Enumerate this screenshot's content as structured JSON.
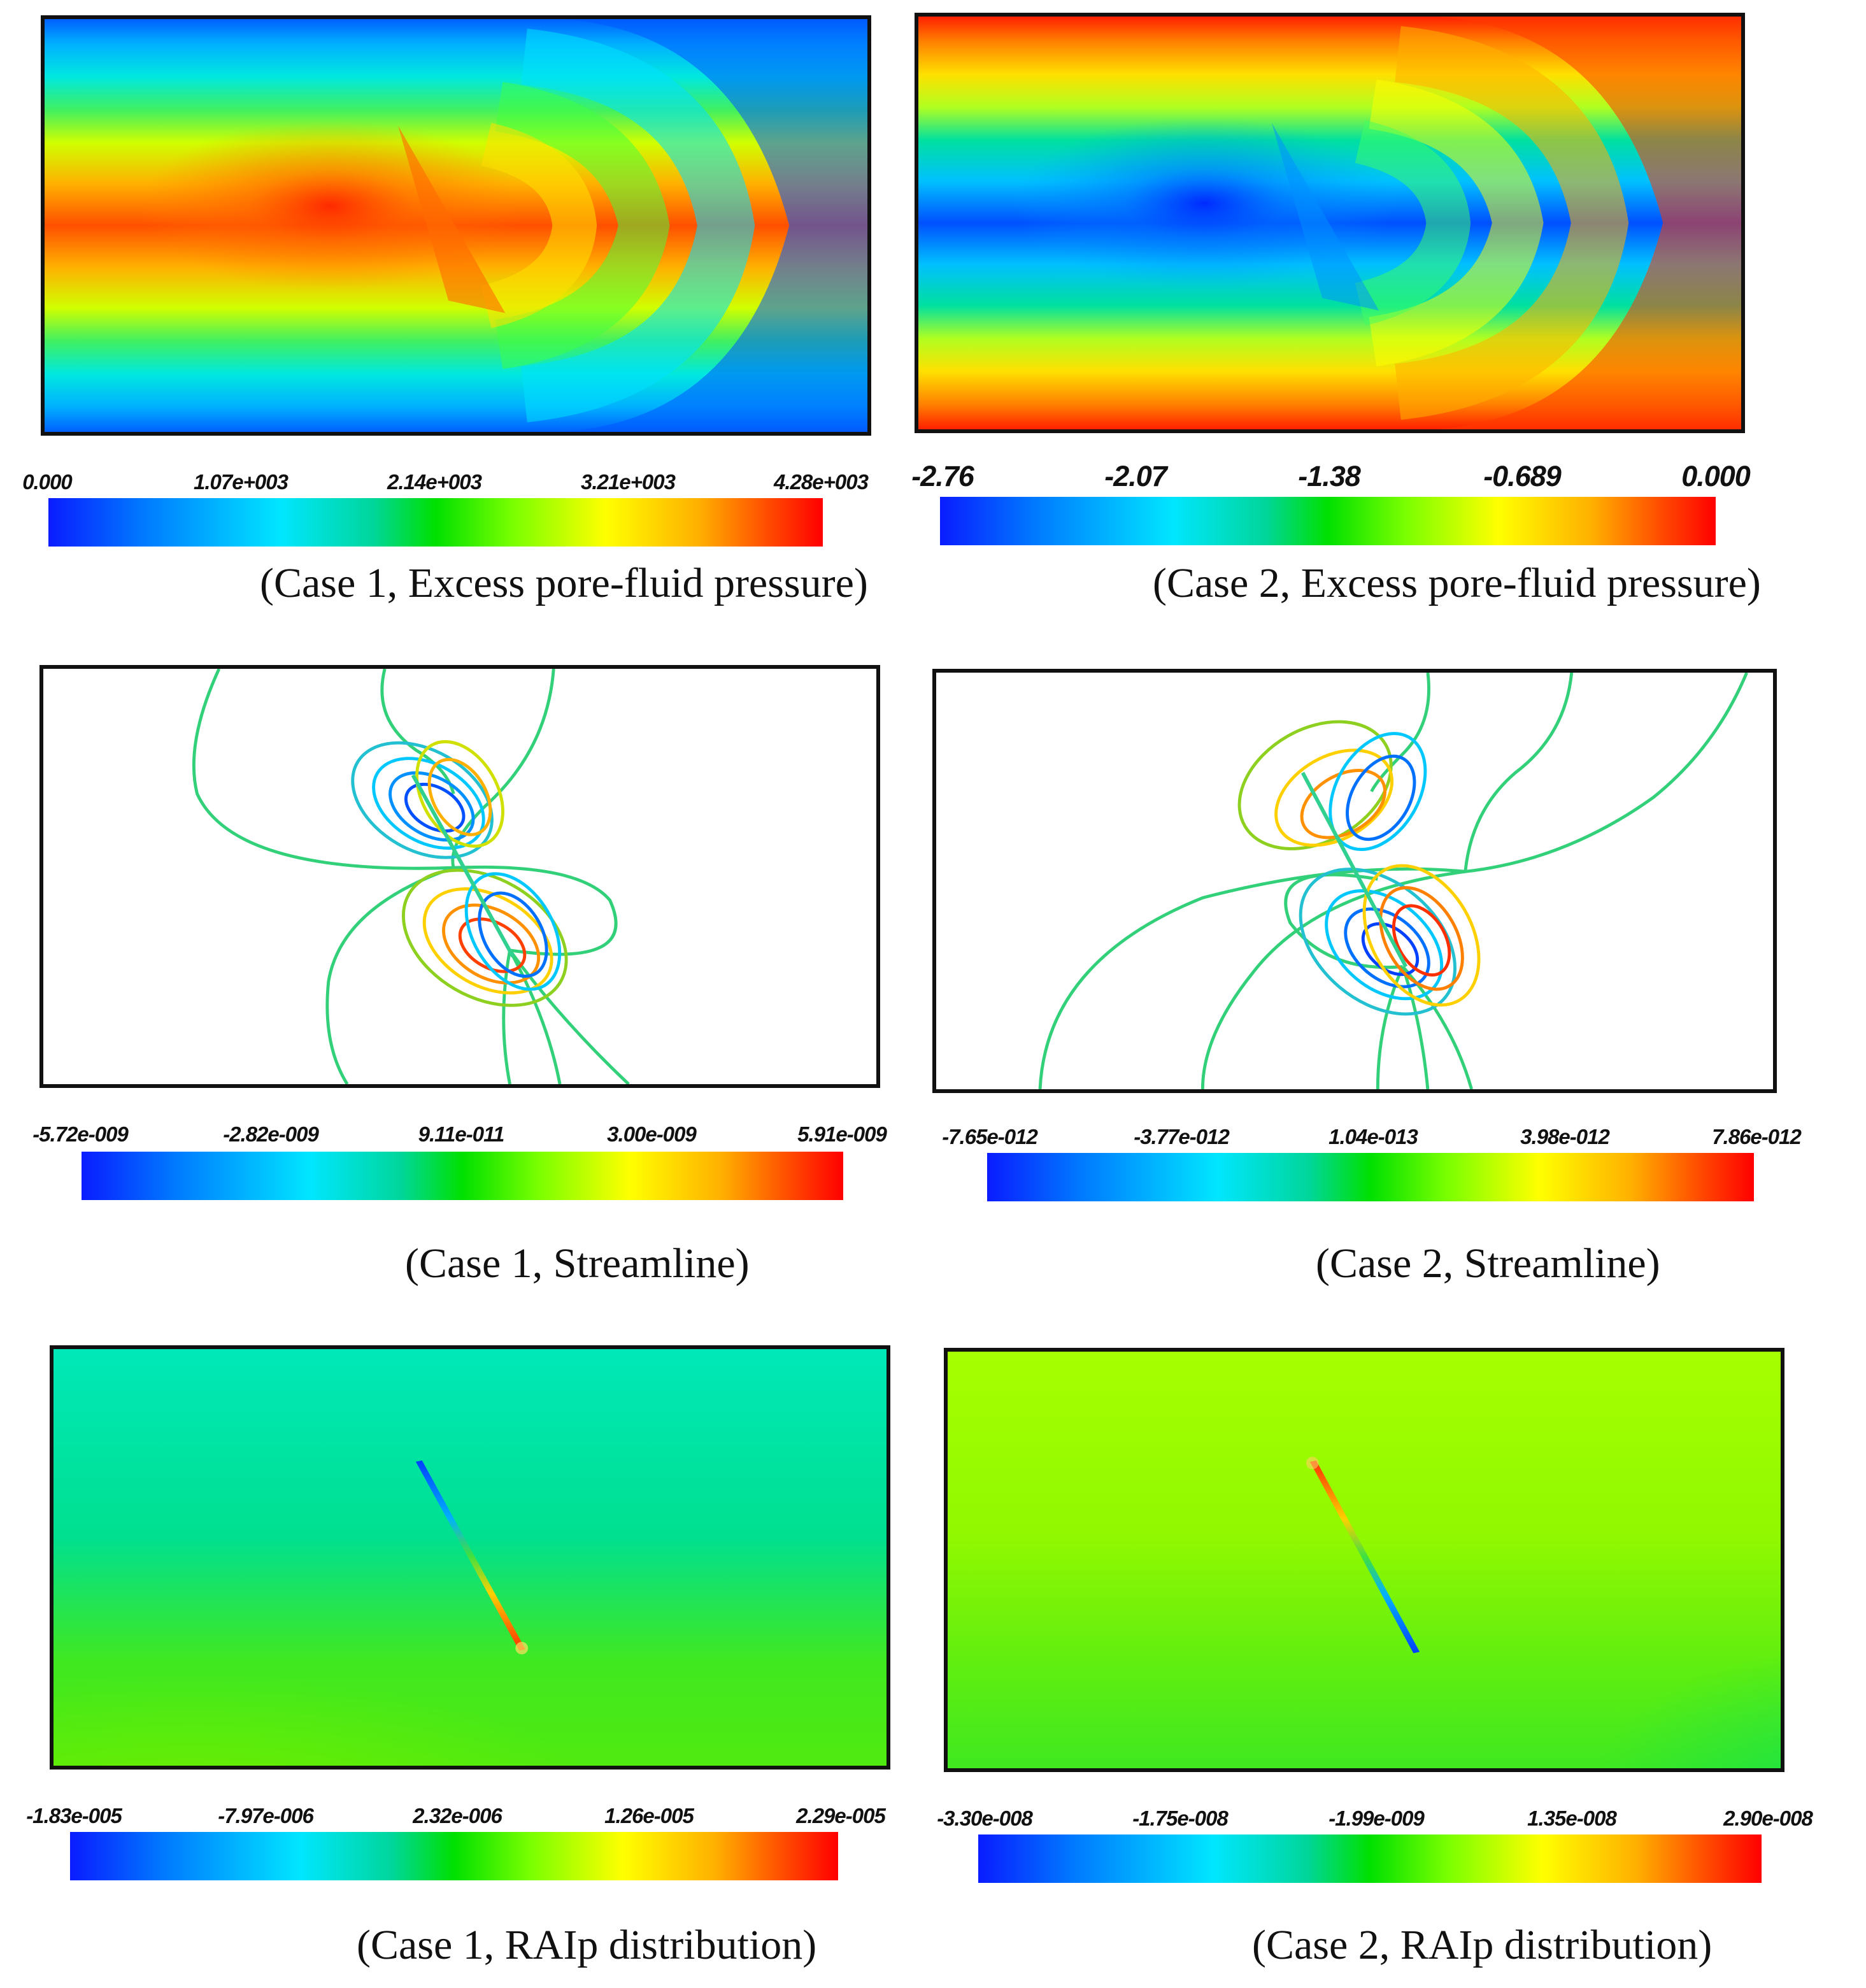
{
  "panels": [
    {
      "id": "case1-pressure",
      "kind": "pressure",
      "caption": "(Case 1, Excess pore-fluid pressure)",
      "colorbar_ticks": [
        "0.000",
        "1.07e+003",
        "2.14e+003",
        "3.21e+003",
        "4.28e+003"
      ]
    },
    {
      "id": "case2-pressure",
      "kind": "pressure-inverted",
      "caption": "(Case 2, Excess pore-fluid pressure)",
      "colorbar_ticks": [
        "-2.76",
        "-2.07",
        "-1.38",
        "-0.689",
        "0.000"
      ]
    },
    {
      "id": "case1-streamline",
      "kind": "streamline",
      "caption": "(Case 1, Streamline)",
      "colorbar_ticks": [
        "-5.72e-009",
        "-2.82e-009",
        "9.11e-011",
        "3.00e-009",
        "5.91e-009"
      ]
    },
    {
      "id": "case2-streamline",
      "kind": "streamline-mirror",
      "caption": "(Case 2, Streamline)",
      "colorbar_ticks": [
        "-7.65e-012",
        "-3.77e-012",
        "1.04e-013",
        "3.98e-012",
        "7.86e-012"
      ]
    },
    {
      "id": "case1-raip",
      "kind": "raip",
      "caption": "(Case 1, RAIp distribution)",
      "colorbar_ticks": [
        "-1.83e-005",
        "-7.97e-006",
        "2.32e-006",
        "1.26e-005",
        "2.29e-005"
      ]
    },
    {
      "id": "case2-raip",
      "kind": "raip-inverted",
      "caption": "(Case 2, RAIp distribution)",
      "colorbar_ticks": [
        "-3.30e-008",
        "-1.75e-008",
        "-1.99e-009",
        "1.35e-008",
        "2.90e-008"
      ]
    }
  ],
  "colormap": [
    "#0a1cff",
    "#00e6ff",
    "#00e000",
    "#ffff00",
    "#ff0000"
  ]
}
